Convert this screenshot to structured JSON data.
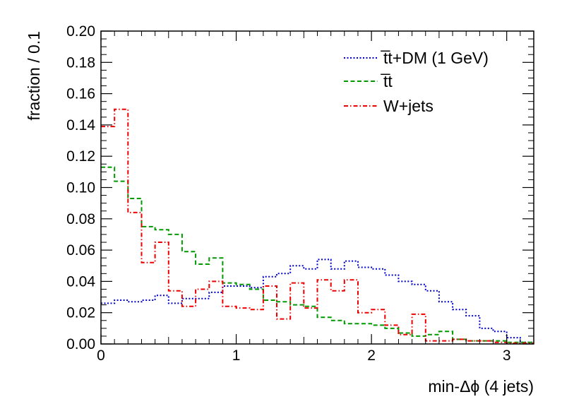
{
  "chart_data": {
    "type": "histogram-step",
    "xlabel": "min-Δϕ (4 jets)",
    "ylabel": "fraction / 0.1",
    "xlim": [
      0,
      3.2
    ],
    "ylim": [
      0,
      0.2
    ],
    "bin_width": 0.1,
    "x_ticks": [
      0,
      1,
      2,
      3
    ],
    "x_tick_labels": [
      "0",
      "1",
      "2",
      "3"
    ],
    "y_ticks": [
      0,
      0.02,
      0.04,
      0.06,
      0.08,
      0.1,
      0.12,
      0.14,
      0.16,
      0.18,
      0.2
    ],
    "y_tick_labels": [
      "0.00",
      "0.02",
      "0.04",
      "0.06",
      "0.08",
      "0.10",
      "0.12",
      "0.14",
      "0.16",
      "0.18",
      "0.20"
    ],
    "grid": false,
    "legend_position": "top-right",
    "bin_edges": [
      0,
      0.1,
      0.2,
      0.3,
      0.4,
      0.5,
      0.6,
      0.7,
      0.8,
      0.9,
      1.0,
      1.1,
      1.2,
      1.3,
      1.4,
      1.5,
      1.6,
      1.7,
      1.8,
      1.9,
      2.0,
      2.1,
      2.2,
      2.3,
      2.4,
      2.5,
      2.6,
      2.7,
      2.8,
      2.9,
      3.0,
      3.1,
      3.2
    ],
    "series": [
      {
        "name": "t̅t+DM (1 GeV)",
        "color": "#0000cc",
        "dash": "dotted",
        "values": [
          0.026,
          0.028,
          0.027,
          0.028,
          0.031,
          0.026,
          0.029,
          0.029,
          0.033,
          0.037,
          0.037,
          0.036,
          0.043,
          0.045,
          0.05,
          0.048,
          0.054,
          0.048,
          0.053,
          0.049,
          0.048,
          0.044,
          0.04,
          0.038,
          0.034,
          0.027,
          0.022,
          0.018,
          0.01,
          0.008,
          0.004,
          0.001
        ]
      },
      {
        "name": "t̅t",
        "color": "#009900",
        "dash": "dashed",
        "values": [
          0.113,
          0.104,
          0.093,
          0.075,
          0.073,
          0.07,
          0.059,
          0.051,
          0.055,
          0.039,
          0.038,
          0.035,
          0.028,
          0.027,
          0.025,
          0.024,
          0.017,
          0.015,
          0.013,
          0.013,
          0.012,
          0.01,
          0.007,
          0.005,
          0.006,
          0.008,
          0.003,
          0.002,
          0.002,
          0.002,
          0.001,
          0.001
        ]
      },
      {
        "name": "W+jets",
        "color": "#ee0000",
        "dash": "dashdot",
        "values": [
          0.139,
          0.15,
          0.084,
          0.052,
          0.065,
          0.034,
          0.024,
          0.035,
          0.04,
          0.024,
          0.023,
          0.022,
          0.037,
          0.016,
          0.039,
          0.023,
          0.041,
          0.034,
          0.041,
          0.02,
          0.022,
          0.012,
          0.006,
          0.019,
          0.002,
          0.002,
          0.003,
          0.002,
          0.002,
          0.001,
          0.0005,
          0.0005
        ]
      }
    ]
  }
}
